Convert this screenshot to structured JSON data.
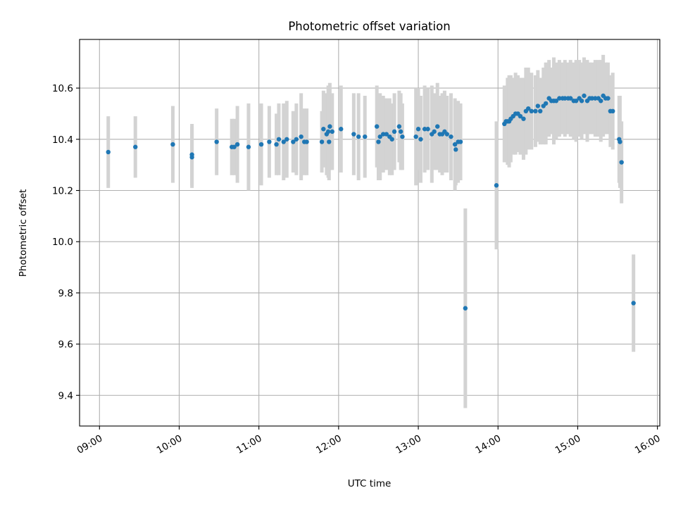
{
  "chart_data": {
    "type": "scatter",
    "title": "Photometric offset variation",
    "xlabel": "UTC time",
    "ylabel": "Photometric offset",
    "x_unit": "UTC time (hours)",
    "xlim": [
      8.75,
      16.03
    ],
    "ylim": [
      9.28,
      10.79
    ],
    "x_ticks": [
      {
        "value": 9,
        "label": "09:00"
      },
      {
        "value": 10,
        "label": "10:00"
      },
      {
        "value": 11,
        "label": "11:00"
      },
      {
        "value": 12,
        "label": "12:00"
      },
      {
        "value": 13,
        "label": "13:00"
      },
      {
        "value": 14,
        "label": "14:00"
      },
      {
        "value": 15,
        "label": "15:00"
      },
      {
        "value": 16,
        "label": "16:00"
      }
    ],
    "y_ticks": [
      {
        "value": 9.4,
        "label": "9.4"
      },
      {
        "value": 9.6,
        "label": "9.6"
      },
      {
        "value": 9.8,
        "label": "9.8"
      },
      {
        "value": 10.0,
        "label": "10.0"
      },
      {
        "value": 10.2,
        "label": "10.2"
      },
      {
        "value": 10.4,
        "label": "10.4"
      },
      {
        "value": 10.6,
        "label": "10.6"
      }
    ],
    "grid": true,
    "legend": "none",
    "colors": {
      "points": "#1f77b4",
      "errorbars": "#d3d3d3",
      "grid": "#b0b0b0"
    },
    "series": [
      {
        "points": [
          [
            9.11,
            10.35,
            0.14
          ],
          [
            9.45,
            10.37,
            0.12
          ],
          [
            9.92,
            10.38,
            0.15
          ],
          [
            10.16,
            10.33,
            0.12
          ],
          [
            10.16,
            10.34,
            0.12
          ],
          [
            10.47,
            10.39,
            0.13
          ],
          [
            10.66,
            10.37,
            0.11
          ],
          [
            10.69,
            10.37,
            0.11
          ],
          [
            10.73,
            10.38,
            0.15
          ],
          [
            10.87,
            10.37,
            0.17
          ],
          [
            11.03,
            10.38,
            0.16
          ],
          [
            11.13,
            10.39,
            0.14
          ],
          [
            11.22,
            10.38,
            0.12
          ],
          [
            11.25,
            10.4,
            0.14
          ],
          [
            11.31,
            10.39,
            0.15
          ],
          [
            11.35,
            10.4,
            0.15
          ],
          [
            11.43,
            10.39,
            0.12
          ],
          [
            11.47,
            10.4,
            0.14
          ],
          [
            11.53,
            10.41,
            0.17
          ],
          [
            11.57,
            10.39,
            0.13
          ],
          [
            11.6,
            10.39,
            0.13
          ],
          [
            11.79,
            10.39,
            0.12
          ],
          [
            11.81,
            10.44,
            0.15
          ],
          [
            11.85,
            10.42,
            0.16
          ],
          [
            11.87,
            10.43,
            0.18
          ],
          [
            11.88,
            10.39,
            0.15
          ],
          [
            11.89,
            10.45,
            0.17
          ],
          [
            11.92,
            10.43,
            0.15
          ],
          [
            12.03,
            10.44,
            0.17
          ],
          [
            12.19,
            10.42,
            0.16
          ],
          [
            12.25,
            10.41,
            0.17
          ],
          [
            12.33,
            10.41,
            0.16
          ],
          [
            12.48,
            10.45,
            0.16
          ],
          [
            12.5,
            10.39,
            0.15
          ],
          [
            12.52,
            10.41,
            0.17
          ],
          [
            12.56,
            10.42,
            0.15
          ],
          [
            12.6,
            10.42,
            0.14
          ],
          [
            12.64,
            10.41,
            0.15
          ],
          [
            12.67,
            10.4,
            0.14
          ],
          [
            12.7,
            10.43,
            0.15
          ],
          [
            12.76,
            10.45,
            0.14
          ],
          [
            12.78,
            10.43,
            0.15
          ],
          [
            12.8,
            10.41,
            0.13
          ],
          [
            12.97,
            10.41,
            0.19
          ],
          [
            13.0,
            10.44,
            0.16
          ],
          [
            13.03,
            10.4,
            0.17
          ],
          [
            13.08,
            10.44,
            0.17
          ],
          [
            13.12,
            10.44,
            0.16
          ],
          [
            13.17,
            10.42,
            0.19
          ],
          [
            13.2,
            10.43,
            0.15
          ],
          [
            13.24,
            10.45,
            0.17
          ],
          [
            13.27,
            10.42,
            0.15
          ],
          [
            13.3,
            10.42,
            0.16
          ],
          [
            13.33,
            10.43,
            0.16
          ],
          [
            13.36,
            10.42,
            0.15
          ],
          [
            13.41,
            10.41,
            0.17
          ],
          [
            13.46,
            10.38,
            0.18
          ],
          [
            13.47,
            10.36,
            0.14
          ],
          [
            13.5,
            10.39,
            0.16
          ],
          [
            13.53,
            10.39,
            0.15
          ],
          [
            13.59,
            9.74,
            0.39
          ],
          [
            13.98,
            10.22,
            0.25
          ],
          [
            14.08,
            10.46,
            0.15
          ],
          [
            14.1,
            10.47,
            0.14
          ],
          [
            14.12,
            10.47,
            0.17
          ],
          [
            14.14,
            10.47,
            0.18
          ],
          [
            14.16,
            10.48,
            0.17
          ],
          [
            14.19,
            10.49,
            0.15
          ],
          [
            14.22,
            10.5,
            0.16
          ],
          [
            14.25,
            10.5,
            0.15
          ],
          [
            14.28,
            10.49,
            0.15
          ],
          [
            14.32,
            10.48,
            0.16
          ],
          [
            14.35,
            10.51,
            0.17
          ],
          [
            14.38,
            10.52,
            0.16
          ],
          [
            14.42,
            10.51,
            0.15
          ],
          [
            14.47,
            10.51,
            0.14
          ],
          [
            14.5,
            10.53,
            0.14
          ],
          [
            14.53,
            10.51,
            0.13
          ],
          [
            14.57,
            10.53,
            0.15
          ],
          [
            14.6,
            10.54,
            0.16
          ],
          [
            14.64,
            10.56,
            0.15
          ],
          [
            14.67,
            10.55,
            0.13
          ],
          [
            14.7,
            10.55,
            0.17
          ],
          [
            14.73,
            10.55,
            0.15
          ],
          [
            14.77,
            10.56,
            0.15
          ],
          [
            14.81,
            10.56,
            0.14
          ],
          [
            14.84,
            10.56,
            0.15
          ],
          [
            14.88,
            10.56,
            0.14
          ],
          [
            14.91,
            10.56,
            0.15
          ],
          [
            14.95,
            10.55,
            0.15
          ],
          [
            14.98,
            10.55,
            0.16
          ],
          [
            15.02,
            10.56,
            0.15
          ],
          [
            15.05,
            10.55,
            0.15
          ],
          [
            15.08,
            10.57,
            0.15
          ],
          [
            15.12,
            10.55,
            0.16
          ],
          [
            15.15,
            10.56,
            0.14
          ],
          [
            15.18,
            10.56,
            0.14
          ],
          [
            15.22,
            10.56,
            0.15
          ],
          [
            15.26,
            10.56,
            0.15
          ],
          [
            15.29,
            10.55,
            0.16
          ],
          [
            15.32,
            10.57,
            0.16
          ],
          [
            15.35,
            10.56,
            0.14
          ],
          [
            15.38,
            10.56,
            0.14
          ],
          [
            15.41,
            10.51,
            0.14
          ],
          [
            15.44,
            10.51,
            0.15
          ],
          [
            15.52,
            10.4,
            0.17
          ],
          [
            15.53,
            10.39,
            0.18
          ],
          [
            15.55,
            10.31,
            0.16
          ],
          [
            15.7,
            9.76,
            0.19
          ]
        ]
      }
    ]
  }
}
